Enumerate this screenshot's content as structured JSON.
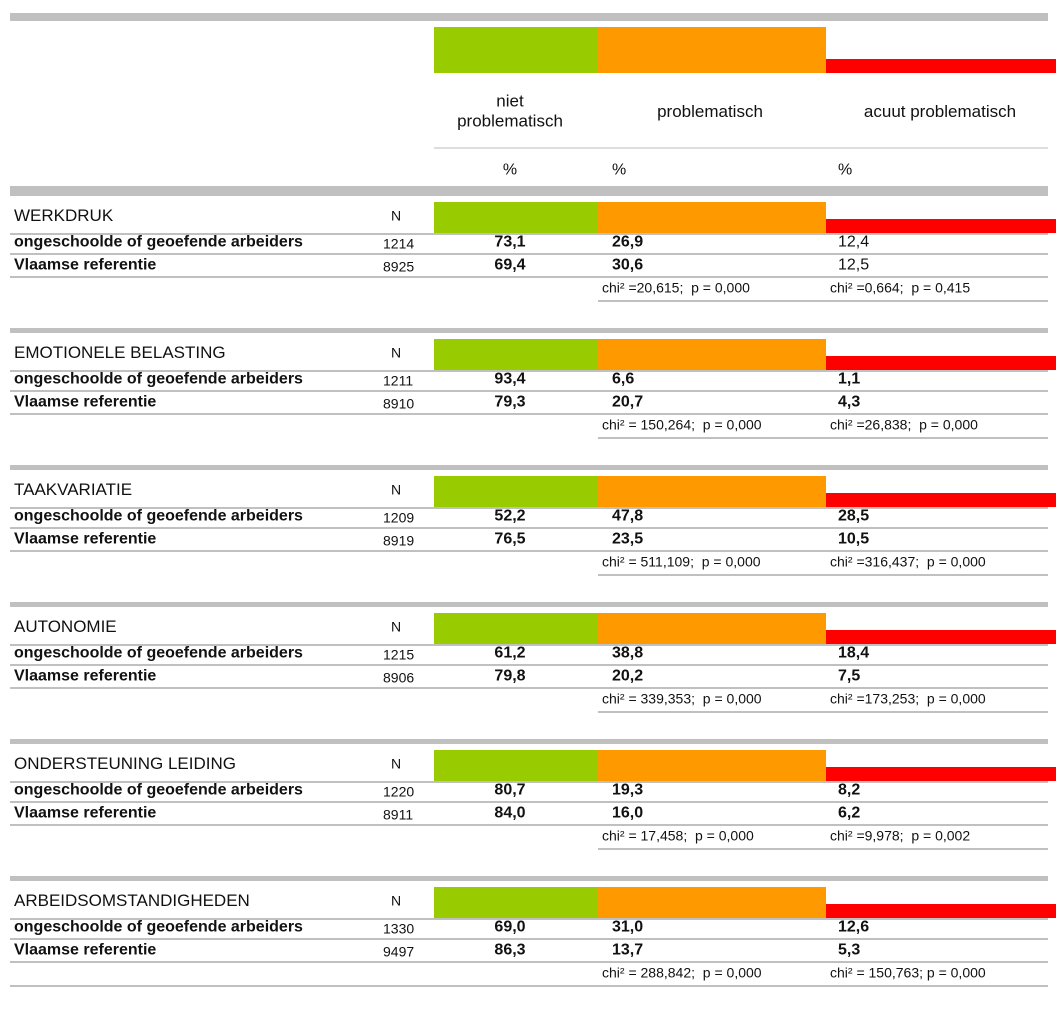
{
  "header": {
    "columns": [
      "niet\nproblematisch",
      "problematisch",
      "acuut problematisch"
    ],
    "units": [
      "%",
      "%",
      "%"
    ]
  },
  "sections": [
    {
      "title": "WERKDRUK",
      "n_label": "N",
      "rows": [
        {
          "label": "ongeschoolde of geoefende arbeiders",
          "n": "1214",
          "values": [
            "73,1",
            "26,9",
            "12,4"
          ]
        },
        {
          "label": "Vlaamse referentie",
          "n": "8925",
          "values": [
            "69,4",
            "30,6",
            "12,5"
          ]
        }
      ],
      "chi": [
        "chi² =20,615;  p = 0,000",
        "chi² =0,664;  p = 0,415"
      ]
    },
    {
      "title": "EMOTIONELE BELASTING",
      "n_label": "N",
      "rows": [
        {
          "label": "ongeschoolde of geoefende arbeiders",
          "n": "1211",
          "values": [
            "93,4",
            "6,6",
            "1,1"
          ]
        },
        {
          "label": "Vlaamse referentie",
          "n": "8910",
          "values": [
            "79,3",
            "20,7",
            "4,3"
          ]
        }
      ],
      "chi": [
        "chi² = 150,264;  p = 0,000",
        "chi² =26,838;  p = 0,000"
      ]
    },
    {
      "title": "TAAKVARIATIE",
      "n_label": "N",
      "rows": [
        {
          "label": "ongeschoolde of geoefende arbeiders",
          "n": "1209",
          "values": [
            "52,2",
            "47,8",
            "28,5"
          ]
        },
        {
          "label": "Vlaamse referentie",
          "n": "8919",
          "values": [
            "76,5",
            "23,5",
            "10,5"
          ]
        }
      ],
      "chi": [
        "chi² = 511,109;  p = 0,000",
        "chi² =316,437;  p = 0,000"
      ]
    },
    {
      "title": "AUTONOMIE",
      "n_label": "N",
      "rows": [
        {
          "label": "ongeschoolde of geoefende arbeiders",
          "n": "1215",
          "values": [
            "61,2",
            "38,8",
            "18,4"
          ]
        },
        {
          "label": "Vlaamse referentie",
          "n": "8906",
          "values": [
            "79,8",
            "20,2",
            "7,5"
          ]
        }
      ],
      "chi": [
        "chi² = 339,353;  p = 0,000",
        "chi² =173,253;  p = 0,000"
      ]
    },
    {
      "title": "ONDERSTEUNING LEIDING",
      "n_label": "N",
      "rows": [
        {
          "label": "ongeschoolde of geoefende arbeiders",
          "n": "1220",
          "values": [
            "80,7",
            "19,3",
            "8,2"
          ]
        },
        {
          "label": "Vlaamse referentie",
          "n": "8911",
          "values": [
            "84,0",
            "16,0",
            "6,2"
          ]
        }
      ],
      "chi": [
        "chi² = 17,458;  p = 0,000",
        "chi² =9,978;  p = 0,002"
      ]
    },
    {
      "title": "ARBEIDSOMSTANDIGHEDEN",
      "n_label": "N",
      "rows": [
        {
          "label": "ongeschoolde of geoefende arbeiders",
          "n": "1330",
          "values": [
            "69,0",
            "31,0",
            "12,6"
          ]
        },
        {
          "label": "Vlaamse referentie",
          "n": "9497",
          "values": [
            "86,3",
            "13,7",
            "5,3"
          ]
        }
      ],
      "chi": [
        "chi² = 288,842;  p = 0,000",
        "chi² = 150,763; p = 0,000"
      ]
    }
  ]
}
